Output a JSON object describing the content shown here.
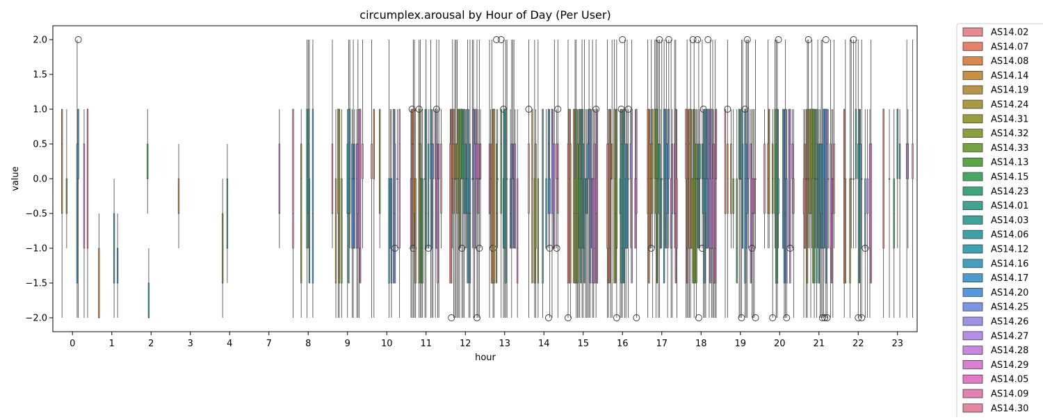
{
  "chart_data": {
    "type": "box",
    "title": "circumplex.arousal by Hour of Day (Per User)",
    "xlabel": "hour",
    "ylabel": "value",
    "ylim": [
      -2.2,
      2.2
    ],
    "yticks": [
      2.0,
      1.5,
      1.0,
      0.5,
      0.0,
      -0.5,
      -1.0,
      -1.5,
      -2.0
    ],
    "yticks_text": [
      "2.0",
      "1.5",
      "1.0",
      "0.5",
      "0.0",
      "−0.5",
      "−1.0",
      "−1.5",
      "−2.0"
    ],
    "categories": [
      "0",
      "1",
      "2",
      "3",
      "4",
      "7",
      "8",
      "9",
      "10",
      "11",
      "12",
      "13",
      "14",
      "15",
      "16",
      "17",
      "18",
      "19",
      "20",
      "21",
      "22",
      "23"
    ],
    "legend_position": "outside-right",
    "series": [
      {
        "name": "AS14.02",
        "color": "#e78a93"
      },
      {
        "name": "AS14.07",
        "color": "#e8806a"
      },
      {
        "name": "AS14.08",
        "color": "#d9874a"
      },
      {
        "name": "AS14.14",
        "color": "#c98f44"
      },
      {
        "name": "AS14.19",
        "color": "#b89546"
      },
      {
        "name": "AS14.24",
        "color": "#a89a40"
      },
      {
        "name": "AS14.31",
        "color": "#9a9d3c"
      },
      {
        "name": "AS14.32",
        "color": "#8aa03c"
      },
      {
        "name": "AS14.33",
        "color": "#76a43e"
      },
      {
        "name": "AS14.13",
        "color": "#5aa844"
      },
      {
        "name": "AS14.15",
        "color": "#46a862"
      },
      {
        "name": "AS14.23",
        "color": "#3ea57d"
      },
      {
        "name": "AS14.01",
        "color": "#3ea38f"
      },
      {
        "name": "AS14.03",
        "color": "#3ea29b"
      },
      {
        "name": "AS14.06",
        "color": "#3ea1a6"
      },
      {
        "name": "AS14.12",
        "color": "#3ea0b1"
      },
      {
        "name": "AS14.16",
        "color": "#449fbe"
      },
      {
        "name": "AS14.17",
        "color": "#4a9ccc"
      },
      {
        "name": "AS14.20",
        "color": "#5498dd"
      },
      {
        "name": "AS14.25",
        "color": "#7a95e4"
      },
      {
        "name": "AS14.26",
        "color": "#9d93e6"
      },
      {
        "name": "AS14.27",
        "color": "#b68ee6"
      },
      {
        "name": "AS14.28",
        "color": "#c886e0"
      },
      {
        "name": "AS14.29",
        "color": "#d97fd8"
      },
      {
        "name": "AS14.05",
        "color": "#e279c6"
      },
      {
        "name": "AS14.09",
        "color": "#e27fb3"
      },
      {
        "name": "AS14.30",
        "color": "#e6879f"
      }
    ]
  }
}
